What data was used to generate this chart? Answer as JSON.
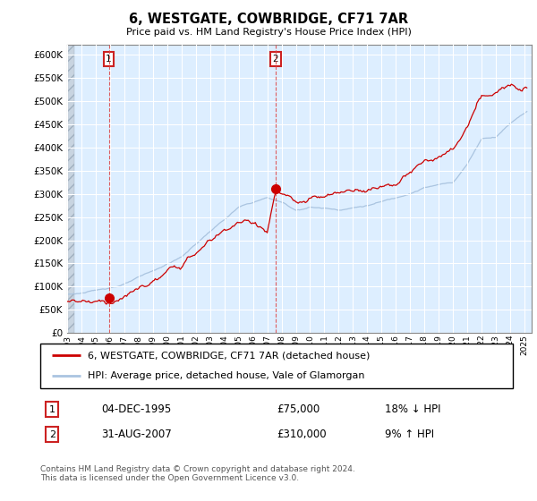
{
  "title": "6, WESTGATE, COWBRIDGE, CF71 7AR",
  "subtitle": "Price paid vs. HM Land Registry's House Price Index (HPI)",
  "legend_line1": "6, WESTGATE, COWBRIDGE, CF71 7AR (detached house)",
  "legend_line2": "HPI: Average price, detached house, Vale of Glamorgan",
  "sale1_date": "04-DEC-1995",
  "sale1_price": 75000,
  "sale1_hpi": "18% ↓ HPI",
  "sale2_date": "31-AUG-2007",
  "sale2_price": 310000,
  "sale2_hpi": "9% ↑ HPI",
  "footer": "Contains HM Land Registry data © Crown copyright and database right 2024.\nThis data is licensed under the Open Government Licence v3.0.",
  "hpi_color": "#aac4e0",
  "property_color": "#cc0000",
  "vline_color": "#dd4444",
  "ylim": [
    0,
    620000
  ],
  "yticks": [
    0,
    50000,
    100000,
    150000,
    200000,
    250000,
    300000,
    350000,
    400000,
    450000,
    500000,
    550000,
    600000
  ],
  "plot_bg": "#ddeeff",
  "grid_color": "#ffffff",
  "hatch_color": "#c0c8d8"
}
